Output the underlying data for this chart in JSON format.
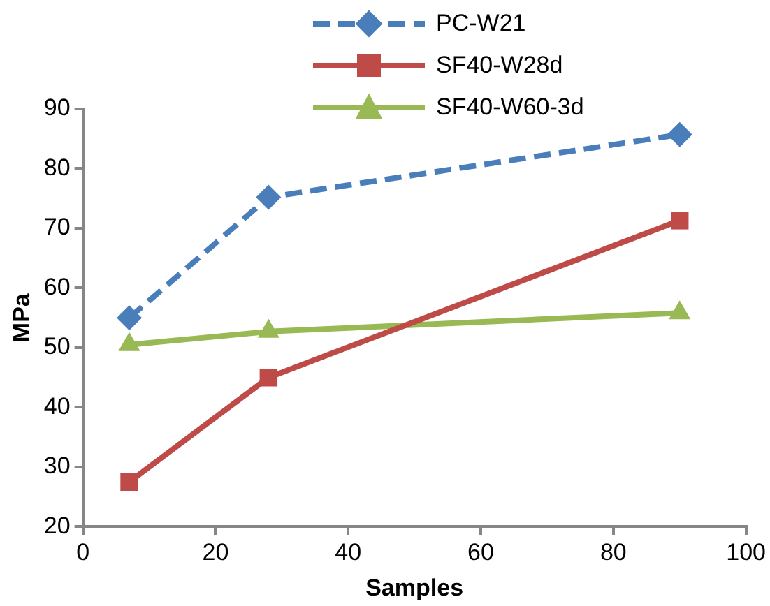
{
  "chart_data": {
    "type": "line",
    "xlabel": "Samples",
    "ylabel": "MPa",
    "xlim": [
      0,
      100
    ],
    "xticks": [
      0,
      20,
      40,
      60,
      80,
      100
    ],
    "ylim": [
      20,
      90
    ],
    "yticks": [
      20,
      30,
      40,
      50,
      60,
      70,
      80,
      90
    ],
    "grid": false,
    "legend": "top",
    "x": [
      7,
      28,
      90
    ],
    "series": [
      {
        "name": "PC-W21",
        "color": "#4a7ebb",
        "marker": "diamond",
        "line_style": "dashed",
        "values": [
          55,
          75.2,
          85.7
        ]
      },
      {
        "name": "SF40-W28d",
        "color": "#be4b48",
        "marker": "square",
        "line_style": "solid",
        "values": [
          27.5,
          45,
          71.3
        ]
      },
      {
        "name": "SF40-W60-3d",
        "color": "#98b954",
        "marker": "triangle",
        "line_style": "solid",
        "values": [
          50.5,
          52.7,
          55.8
        ]
      }
    ]
  }
}
